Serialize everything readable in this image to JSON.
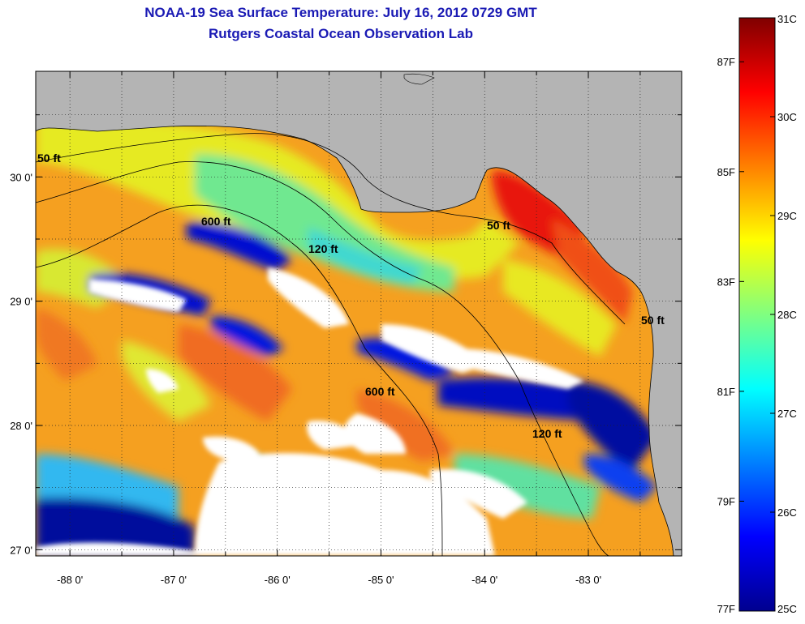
{
  "title": "NOAA-19 Sea Surface Temperature:  July 16, 2012 0729 GMT",
  "subtitle": "Rutgers Coastal Ocean Observation Lab",
  "colors": {
    "land": "#b4b4b4",
    "cloud": "#ffffff",
    "coastline": "#000000",
    "title": "#1a1ab4"
  },
  "axes": {
    "lat_labels": [
      "30 0'",
      "29 0'",
      "28 0'",
      "27 0'"
    ],
    "lon_labels": [
      "-88 0'",
      "-87 0'",
      "-86 0'",
      "-85 0'",
      "-84 0'",
      "-83 0'"
    ],
    "lat_values": [
      30,
      29,
      28,
      27
    ],
    "lon_values": [
      -88,
      -87,
      -86,
      -85,
      -84,
      -83
    ],
    "lon_range": [
      -88.33,
      -82.1
    ],
    "lat_range": [
      26.95,
      30.85
    ]
  },
  "contours": [
    {
      "label": "50 ft"
    },
    {
      "label": "600 ft"
    },
    {
      "label": "120 ft"
    },
    {
      "label": "50 ft"
    },
    {
      "label": "600 ft"
    },
    {
      "label": "120 ft"
    },
    {
      "label": "50 ft"
    }
  ],
  "colorbar": {
    "range_c": [
      25,
      31
    ],
    "celsius_labels": [
      {
        "label": "31C",
        "value": 31
      },
      {
        "label": "30C",
        "value": 30
      },
      {
        "label": "29C",
        "value": 29
      },
      {
        "label": "28C",
        "value": 28
      },
      {
        "label": "27C",
        "value": 27
      },
      {
        "label": "26C",
        "value": 26
      },
      {
        "label": "25C",
        "value": 25
      }
    ],
    "fahrenheit_labels": [
      {
        "label": "87F",
        "value": 87
      },
      {
        "label": "85F",
        "value": 85
      },
      {
        "label": "83F",
        "value": 83
      },
      {
        "label": "81F",
        "value": 81
      },
      {
        "label": "79F",
        "value": 79
      },
      {
        "label": "77F",
        "value": 77
      }
    ]
  }
}
